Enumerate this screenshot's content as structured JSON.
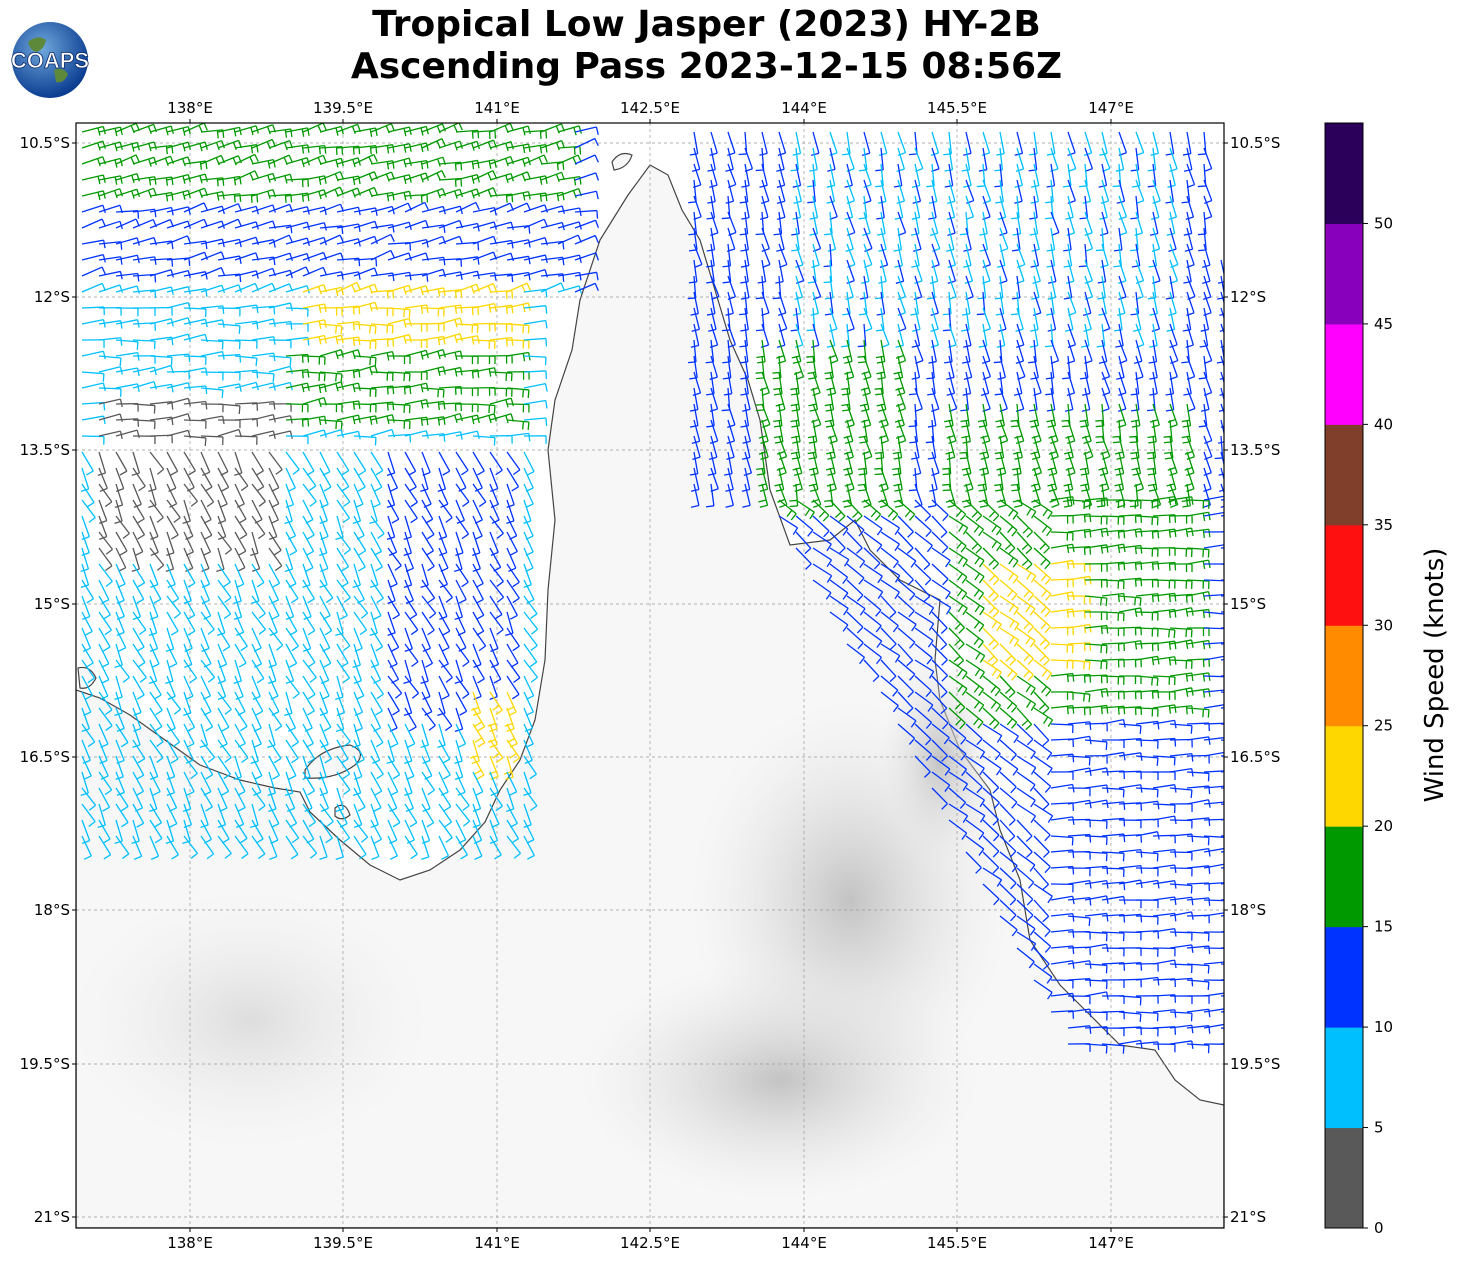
{
  "title": {
    "line1": "Tropical Low Jasper (2023) HY-2B",
    "line2": "Ascending Pass 2023-12-15 08:56Z"
  },
  "logo": {
    "text": "COAPS"
  },
  "axes": {
    "lon_ticks": [
      "138°E",
      "139.5°E",
      "141°E",
      "142.5°E",
      "144°E",
      "145.5°E",
      "147°E"
    ],
    "lat_ticks": [
      "10.5°S",
      "12°S",
      "13.5°S",
      "15°S",
      "16.5°S",
      "18°S",
      "19.5°S",
      "21°S"
    ]
  },
  "colorbar": {
    "label": "Wind Speed (knots)",
    "ticks": [
      "0",
      "5",
      "10",
      "15",
      "20",
      "25",
      "30",
      "35",
      "40",
      "45",
      "50"
    ],
    "colors": [
      "#595959",
      "#00bfff",
      "#0033ff",
      "#009900",
      "#ffd700",
      "#ff8c00",
      "#ff1010",
      "#7f3f2a",
      "#ff00ff",
      "#8800bb",
      "#2a005a"
    ]
  }
}
